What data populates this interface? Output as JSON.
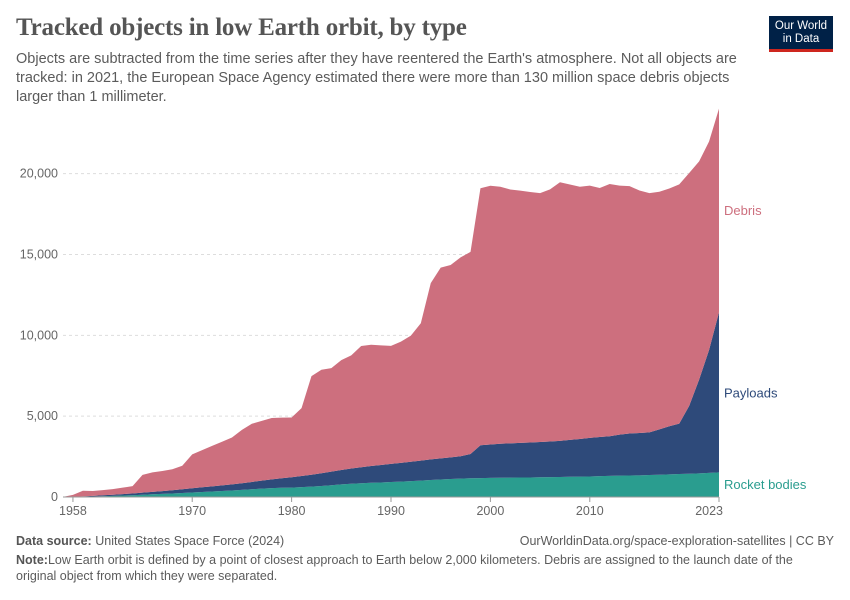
{
  "header": {
    "title": "Tracked objects in low Earth orbit, by type",
    "subtitle": "Objects are subtracted from the time series after they have reentered the Earth's atmosphere. Not all objects are tracked: in 2021, the European Space Agency estimated there were more than 130 million space debris objects larger than 1 millimeter."
  },
  "logo": {
    "line1": "Our World",
    "line2": "in Data",
    "bg_color": "#002147",
    "accent_color": "#ce261e"
  },
  "footer": {
    "source_label": "Data source:",
    "source_text": "United States Space Force (2024)",
    "url_text": "OurWorldinData.org/space-exploration-satellites | CC BY",
    "note_label": "Note:",
    "note_text": "Low Earth orbit is defined by a point of closest approach to Earth below 2,000 kilometers. Debris are assigned to the launch date of the original object from which they were separated."
  },
  "chart_data": {
    "type": "area",
    "stacked": true,
    "x": [
      1957,
      1958,
      1959,
      1960,
      1961,
      1962,
      1963,
      1964,
      1965,
      1966,
      1967,
      1968,
      1969,
      1970,
      1971,
      1972,
      1973,
      1974,
      1975,
      1976,
      1977,
      1978,
      1979,
      1980,
      1981,
      1982,
      1983,
      1984,
      1985,
      1986,
      1987,
      1988,
      1989,
      1990,
      1991,
      1992,
      1993,
      1994,
      1995,
      1996,
      1997,
      1998,
      1999,
      2000,
      2001,
      2002,
      2003,
      2004,
      2005,
      2006,
      2007,
      2008,
      2009,
      2010,
      2011,
      2012,
      2013,
      2014,
      2015,
      2016,
      2017,
      2018,
      2019,
      2020,
      2021,
      2022,
      2023
    ],
    "series": [
      {
        "name": "Rocket bodies",
        "color": "#2a9d8f",
        "values": [
          2,
          5,
          15,
          30,
          50,
          70,
          90,
          110,
          140,
          170,
          190,
          220,
          250,
          280,
          310,
          340,
          370,
          400,
          440,
          480,
          520,
          550,
          570,
          580,
          610,
          640,
          680,
          730,
          780,
          820,
          850,
          880,
          900,
          930,
          950,
          980,
          1010,
          1050,
          1080,
          1110,
          1140,
          1160,
          1170,
          1180,
          1190,
          1200,
          1210,
          1210,
          1220,
          1230,
          1240,
          1250,
          1260,
          1270,
          1290,
          1310,
          1320,
          1330,
          1340,
          1360,
          1380,
          1400,
          1420,
          1440,
          1460,
          1490,
          1520
        ]
      },
      {
        "name": "Payloads",
        "color": "#2e4a7a",
        "values": [
          3,
          10,
          20,
          40,
          55,
          70,
          90,
          110,
          130,
          150,
          170,
          200,
          230,
          260,
          290,
          320,
          350,
          380,
          410,
          450,
          490,
          540,
          590,
          640,
          690,
          740,
          790,
          840,
          890,
          940,
          990,
          1040,
          1080,
          1120,
          1160,
          1200,
          1240,
          1280,
          1310,
          1340,
          1380,
          1500,
          2030,
          2070,
          2100,
          2120,
          2140,
          2160,
          2180,
          2200,
          2230,
          2280,
          2330,
          2390,
          2420,
          2450,
          2540,
          2600,
          2620,
          2640,
          2800,
          2980,
          3120,
          4200,
          5800,
          7600,
          9900
        ]
      },
      {
        "name": "Debris",
        "color": "#cd6f7e",
        "values": [
          0,
          120,
          350,
          300,
          320,
          350,
          400,
          450,
          1100,
          1200,
          1250,
          1300,
          1450,
          2100,
          2300,
          2500,
          2700,
          2900,
          3300,
          3600,
          3700,
          3800,
          3750,
          3700,
          4200,
          6100,
          6400,
          6400,
          6800,
          7000,
          7500,
          7500,
          7400,
          7300,
          7500,
          7800,
          8500,
          10900,
          11800,
          11900,
          12300,
          12500,
          15900,
          16000,
          15900,
          15700,
          15600,
          15500,
          15400,
          15600,
          16000,
          15800,
          15600,
          15600,
          15400,
          15600,
          15400,
          15300,
          15000,
          14800,
          14700,
          14700,
          14800,
          14400,
          13500,
          12900,
          12600
        ]
      }
    ],
    "xlabel": "",
    "ylabel": "",
    "xlim": [
      1957,
      2023
    ],
    "ylim": [
      0,
      24000
    ],
    "x_ticks": [
      1958,
      1970,
      1980,
      1990,
      2000,
      2010,
      2023
    ],
    "y_ticks": [
      0,
      5000,
      10000,
      15000,
      20000
    ],
    "y_tick_labels": [
      "0",
      "5,000",
      "10,000",
      "15,000",
      "20,000"
    ],
    "grid": "horizontal dashed",
    "legend": "labels at right end of each series"
  }
}
